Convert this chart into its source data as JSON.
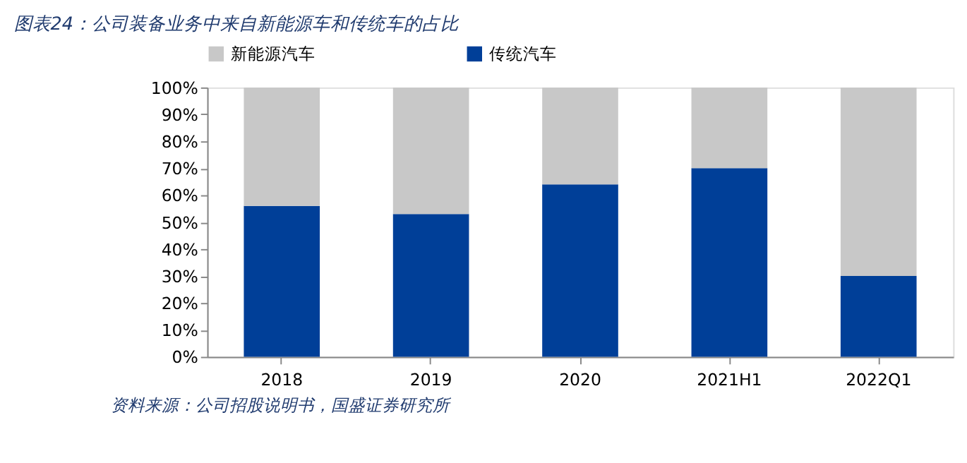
{
  "chart_data": {
    "type": "bar",
    "stacked": true,
    "title": "图表24：公司装备业务中来自新能源车和传统车的占比",
    "categories": [
      "2018",
      "2019",
      "2020",
      "2021H1",
      "2022Q1"
    ],
    "series": [
      {
        "name": "传统汽车",
        "color": "#003f98",
        "values": [
          56,
          53,
          64,
          70,
          30
        ]
      },
      {
        "name": "新能源汽车",
        "color": "#c8c8c8",
        "values": [
          44,
          47,
          36,
          30,
          70
        ]
      }
    ],
    "ylim": [
      0,
      100
    ],
    "yticks": [
      {
        "value": 0,
        "label": "0%"
      },
      {
        "value": 10,
        "label": "10%"
      },
      {
        "value": 20,
        "label": "20%"
      },
      {
        "value": 30,
        "label": "30%"
      },
      {
        "value": 40,
        "label": "40%"
      },
      {
        "value": 50,
        "label": "50%"
      },
      {
        "value": 60,
        "label": "60%"
      },
      {
        "value": 70,
        "label": "70%"
      },
      {
        "value": 80,
        "label": "80%"
      },
      {
        "value": 90,
        "label": "90%"
      },
      {
        "value": 100,
        "label": "100%"
      }
    ],
    "grid": false,
    "legend": "top",
    "annotations": [
      "资料来源：公司招股说明书，国盛证券研究所"
    ]
  }
}
